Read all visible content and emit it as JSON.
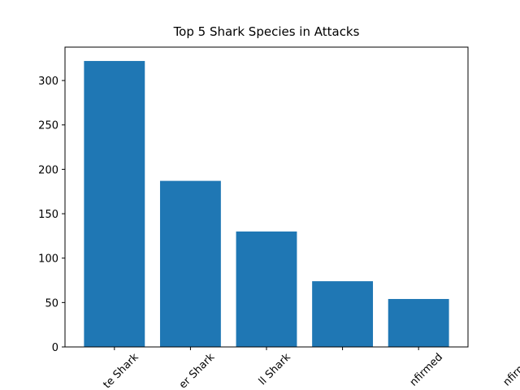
{
  "chart_data": {
    "type": "bar",
    "title": "Top 5 Shark Species in Attacks",
    "categories": [
      "te Shark",
      "er Shark",
      "ll Shark",
      null,
      "nfirmed"
    ],
    "values": [
      322,
      187,
      130,
      74,
      54
    ],
    "color": "#1f77b4",
    "ylim": [
      0,
      337.6
    ],
    "yticks": [
      0,
      50,
      100,
      150,
      200,
      250,
      300
    ],
    "annotations": [
      "nfirmed"
    ]
  }
}
